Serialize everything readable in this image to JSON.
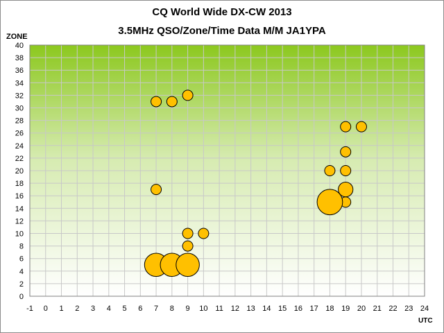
{
  "chart_data": {
    "type": "scatter",
    "title": "CQ World Wide DX-CW 2013",
    "subtitle": "3.5MHz QSO/Zone/Time Data M/M JA1YPA",
    "xlabel": "UTC",
    "ylabel": "ZONE",
    "xlim": [
      -1,
      24
    ],
    "ylim": [
      0,
      40
    ],
    "x_ticks": [
      -1,
      0,
      1,
      2,
      3,
      4,
      5,
      6,
      7,
      8,
      9,
      10,
      11,
      12,
      13,
      14,
      15,
      16,
      17,
      18,
      19,
      20,
      21,
      22,
      23,
      24
    ],
    "y_ticks": [
      0,
      2,
      4,
      6,
      8,
      10,
      12,
      14,
      16,
      18,
      20,
      22,
      24,
      26,
      28,
      30,
      32,
      34,
      36,
      38,
      40
    ],
    "grid": true,
    "colors": {
      "bubble_fill": "#ffc000",
      "bubble_stroke": "#000000",
      "plot_top": "#8cc81e",
      "plot_bottom": "#ffffff"
    },
    "points": [
      {
        "x": 7,
        "y": 31,
        "size": 1
      },
      {
        "x": 8,
        "y": 31,
        "size": 1
      },
      {
        "x": 9,
        "y": 32,
        "size": 1
      },
      {
        "x": 7,
        "y": 17,
        "size": 1
      },
      {
        "x": 9,
        "y": 10,
        "size": 1
      },
      {
        "x": 10,
        "y": 10,
        "size": 1
      },
      {
        "x": 9,
        "y": 8,
        "size": 1
      },
      {
        "x": 7,
        "y": 5,
        "size": 5
      },
      {
        "x": 8,
        "y": 5,
        "size": 5
      },
      {
        "x": 9,
        "y": 5,
        "size": 5
      },
      {
        "x": 19,
        "y": 27,
        "size": 1
      },
      {
        "x": 20,
        "y": 27,
        "size": 1
      },
      {
        "x": 19,
        "y": 23,
        "size": 1
      },
      {
        "x": 18,
        "y": 20,
        "size": 1
      },
      {
        "x": 19,
        "y": 20,
        "size": 1
      },
      {
        "x": 19,
        "y": 17,
        "size": 2
      },
      {
        "x": 18,
        "y": 16,
        "size": 1
      },
      {
        "x": 19,
        "y": 15,
        "size": 1
      },
      {
        "x": 18,
        "y": 15,
        "size": 6
      }
    ]
  }
}
